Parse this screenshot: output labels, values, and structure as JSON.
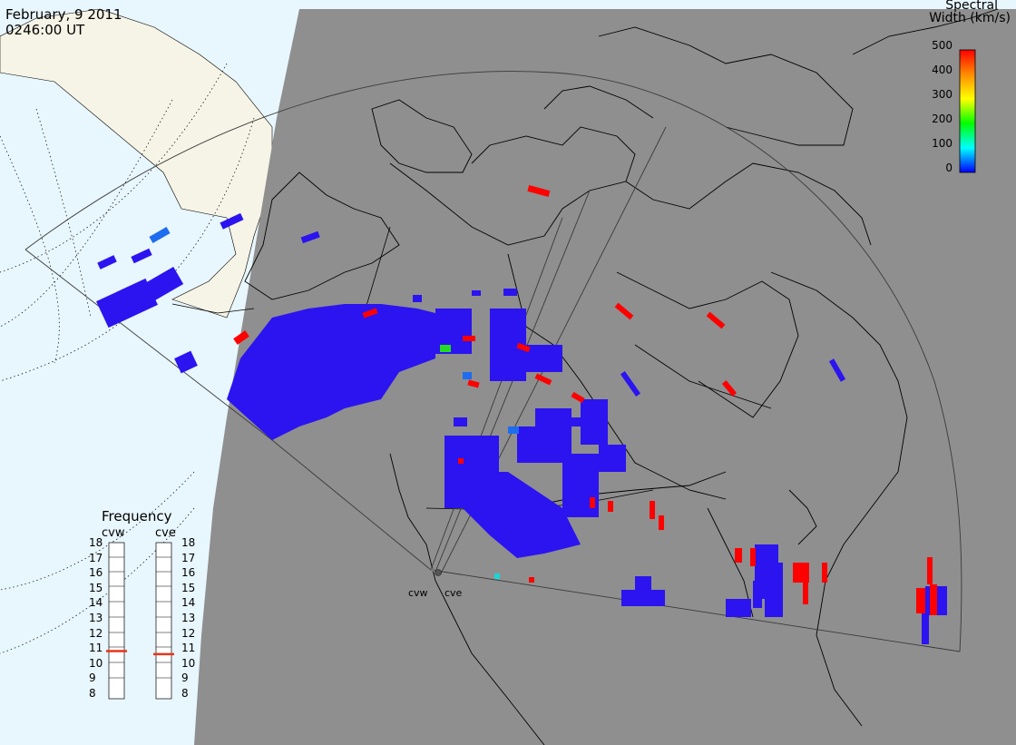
{
  "title": {
    "date": "February, 9 2011",
    "time": "0246:00 UT"
  },
  "colorbar": {
    "title_line1": "Spectral",
    "title_line2": "Width (km/s)",
    "ticks": [
      "500",
      "400",
      "300",
      "200",
      "100",
      "0"
    ],
    "colors": [
      "#ff0000",
      "#ff8c00",
      "#ffff00",
      "#00ff00",
      "#00ffff",
      "#0000ff"
    ]
  },
  "frequency_panel": {
    "title": "Frequency",
    "radar_w": "cvw",
    "radar_e": "cve",
    "ticks": [
      "18",
      "17",
      "16",
      "15",
      "14",
      "13",
      "12",
      "11",
      "10",
      "9",
      "8"
    ],
    "cvw_value_mhz": 10.8,
    "cve_value_mhz": 10.6,
    "marker_color": "#e8341a"
  },
  "radars": [
    {
      "code": "cvw",
      "label": "cvw"
    },
    {
      "code": "cve",
      "label": "cve"
    }
  ],
  "colors": {
    "night_side": "#8f8f8f",
    "day_ocean": "#e8f6fd",
    "day_land": "#f6f4e6",
    "low_width": "#2b14f0",
    "high_width": "#ff0000"
  }
}
